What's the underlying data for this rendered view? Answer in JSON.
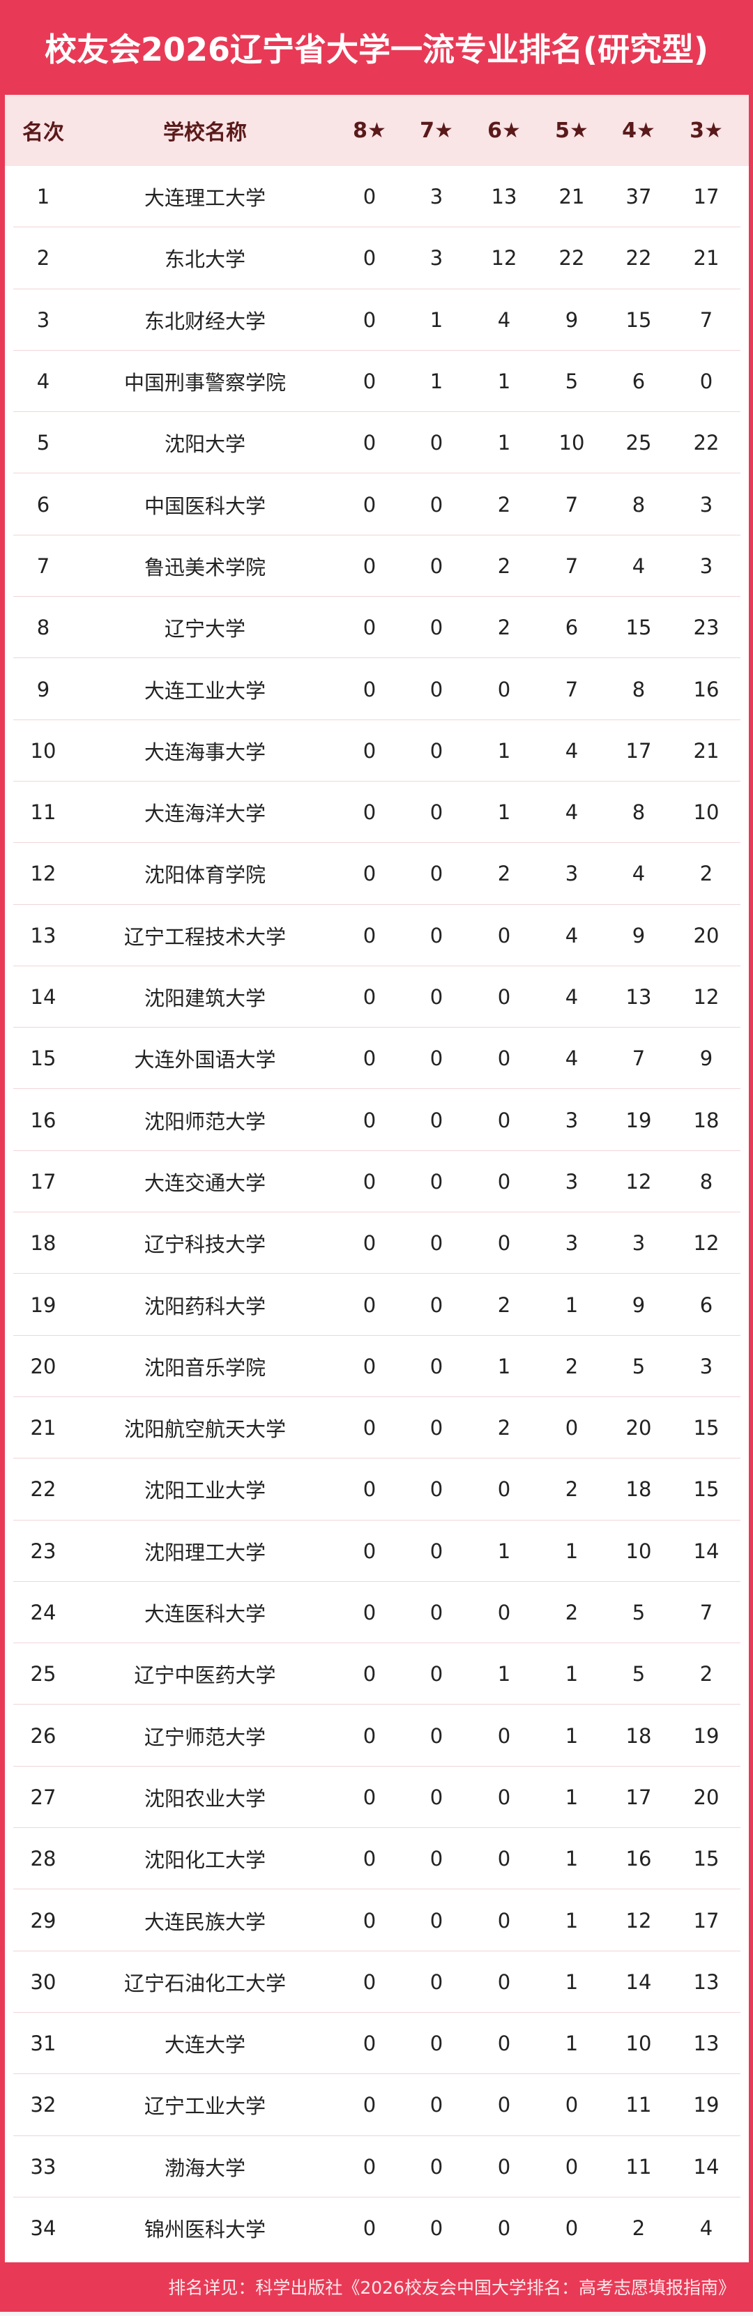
{
  "title": "校友会2026辽宁省大学一流专业排名(研究型)",
  "colors": {
    "brand_red": "#e83a56",
    "header_bg": "#f9e4e6",
    "header_text": "#5a1a1a"
  },
  "table": {
    "headers": [
      "名次",
      "学校名称",
      "8★",
      "7★",
      "6★",
      "5★",
      "4★",
      "3★"
    ],
    "rows": [
      [
        "1",
        "大连理工大学",
        "0",
        "3",
        "13",
        "21",
        "37",
        "17"
      ],
      [
        "2",
        "东北大学",
        "0",
        "3",
        "12",
        "22",
        "22",
        "21"
      ],
      [
        "3",
        "东北财经大学",
        "0",
        "1",
        "4",
        "9",
        "15",
        "7"
      ],
      [
        "4",
        "中国刑事警察学院",
        "0",
        "1",
        "1",
        "5",
        "6",
        "0"
      ],
      [
        "5",
        "沈阳大学",
        "0",
        "0",
        "1",
        "10",
        "25",
        "22"
      ],
      [
        "6",
        "中国医科大学",
        "0",
        "0",
        "2",
        "7",
        "8",
        "3"
      ],
      [
        "7",
        "鲁迅美术学院",
        "0",
        "0",
        "2",
        "7",
        "4",
        "3"
      ],
      [
        "8",
        "辽宁大学",
        "0",
        "0",
        "2",
        "6",
        "15",
        "23"
      ],
      [
        "9",
        "大连工业大学",
        "0",
        "0",
        "0",
        "7",
        "8",
        "16"
      ],
      [
        "10",
        "大连海事大学",
        "0",
        "0",
        "1",
        "4",
        "17",
        "21"
      ],
      [
        "11",
        "大连海洋大学",
        "0",
        "0",
        "1",
        "4",
        "8",
        "10"
      ],
      [
        "12",
        "沈阳体育学院",
        "0",
        "0",
        "2",
        "3",
        "4",
        "2"
      ],
      [
        "13",
        "辽宁工程技术大学",
        "0",
        "0",
        "0",
        "4",
        "9",
        "20"
      ],
      [
        "14",
        "沈阳建筑大学",
        "0",
        "0",
        "0",
        "4",
        "13",
        "12"
      ],
      [
        "15",
        "大连外国语大学",
        "0",
        "0",
        "0",
        "4",
        "7",
        "9"
      ],
      [
        "16",
        "沈阳师范大学",
        "0",
        "0",
        "0",
        "3",
        "19",
        "18"
      ],
      [
        "17",
        "大连交通大学",
        "0",
        "0",
        "0",
        "3",
        "12",
        "8"
      ],
      [
        "18",
        "辽宁科技大学",
        "0",
        "0",
        "0",
        "3",
        "3",
        "12"
      ],
      [
        "19",
        "沈阳药科大学",
        "0",
        "0",
        "2",
        "1",
        "9",
        "6"
      ],
      [
        "20",
        "沈阳音乐学院",
        "0",
        "0",
        "1",
        "2",
        "5",
        "3"
      ],
      [
        "21",
        "沈阳航空航天大学",
        "0",
        "0",
        "2",
        "0",
        "20",
        "15"
      ],
      [
        "22",
        "沈阳工业大学",
        "0",
        "0",
        "0",
        "2",
        "18",
        "15"
      ],
      [
        "23",
        "沈阳理工大学",
        "0",
        "0",
        "1",
        "1",
        "10",
        "14"
      ],
      [
        "24",
        "大连医科大学",
        "0",
        "0",
        "0",
        "2",
        "5",
        "7"
      ],
      [
        "25",
        "辽宁中医药大学",
        "0",
        "0",
        "1",
        "1",
        "5",
        "2"
      ],
      [
        "26",
        "辽宁师范大学",
        "0",
        "0",
        "0",
        "1",
        "18",
        "19"
      ],
      [
        "27",
        "沈阳农业大学",
        "0",
        "0",
        "0",
        "1",
        "17",
        "20"
      ],
      [
        "28",
        "沈阳化工大学",
        "0",
        "0",
        "0",
        "1",
        "16",
        "15"
      ],
      [
        "29",
        "大连民族大学",
        "0",
        "0",
        "0",
        "1",
        "12",
        "17"
      ],
      [
        "30",
        "辽宁石油化工大学",
        "0",
        "0",
        "0",
        "1",
        "14",
        "13"
      ],
      [
        "31",
        "大连大学",
        "0",
        "0",
        "0",
        "1",
        "10",
        "13"
      ],
      [
        "32",
        "辽宁工业大学",
        "0",
        "0",
        "0",
        "0",
        "11",
        "19"
      ],
      [
        "33",
        "渤海大学",
        "0",
        "0",
        "0",
        "0",
        "11",
        "14"
      ],
      [
        "34",
        "锦州医科大学",
        "0",
        "0",
        "0",
        "0",
        "2",
        "4"
      ]
    ]
  },
  "footer": "排名详见：科学出版社《2026校友会中国大学排名：高考志愿填报指南》"
}
